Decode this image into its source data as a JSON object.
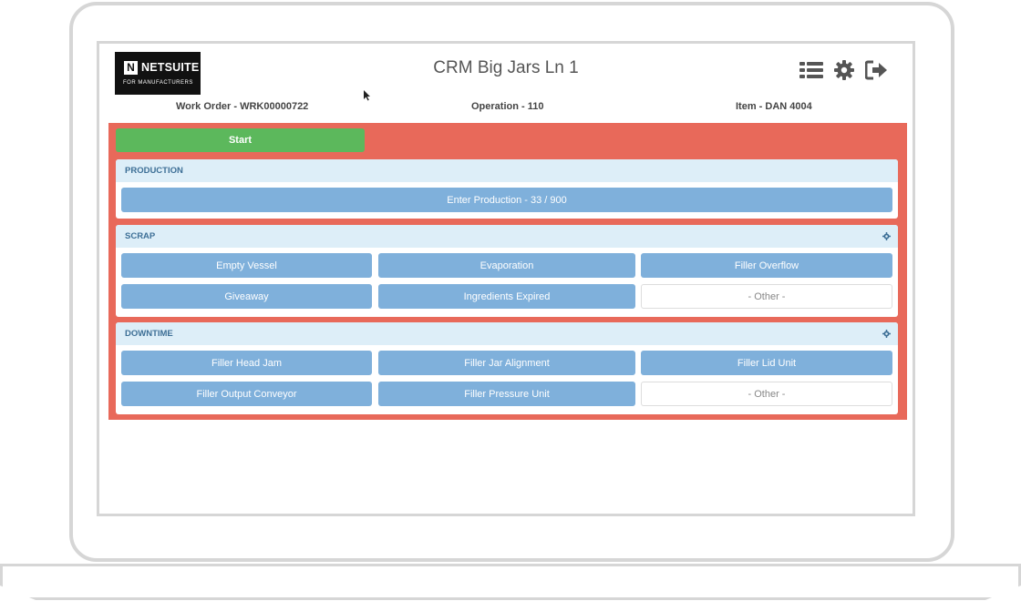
{
  "logo": {
    "mark": "N",
    "brand": "NETSUITE",
    "sub": "FOR MANUFACTURERS"
  },
  "app": {
    "title": "CRM Big Jars Ln 1"
  },
  "header_icons": [
    "list-icon",
    "gear-icon",
    "logout-icon"
  ],
  "meta": {
    "work_order": "Work Order - WRK00000722",
    "operation": "Operation - 110",
    "item": "Item - DAN 4004"
  },
  "colors": {
    "stage_background": "#e8695a",
    "start_button": "#5cb85c",
    "action_button": "#7fb0db",
    "panel_header": "#ddeef8",
    "panel_header_text": "#3d6f96"
  },
  "start": {
    "label": "Start"
  },
  "production": {
    "title": "PRODUCTION",
    "enter_label": "Enter Production - 33 / 900"
  },
  "scrap": {
    "title": "SCRAP",
    "buttons": [
      "Empty Vessel",
      "Evaporation",
      "Filler Overflow",
      "Giveaway",
      "Ingredients Expired"
    ],
    "other_label": "- Other -"
  },
  "downtime": {
    "title": "DOWNTIME",
    "buttons": [
      "Filler Head Jam",
      "Filler Jar Alignment",
      "Filler Lid Unit",
      "Filler Output Conveyor",
      "Filler Pressure Unit"
    ],
    "other_label": "- Other -"
  }
}
